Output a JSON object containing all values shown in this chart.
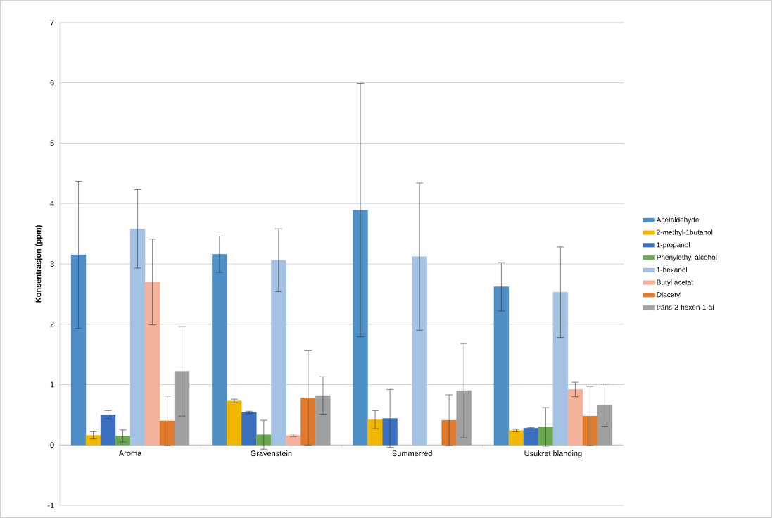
{
  "chart_data": {
    "type": "bar",
    "ylabel": "Konsentrasjon (ppm)",
    "categories": [
      "Aroma",
      "Gravenstein",
      "Summerred",
      "Usukret blanding"
    ],
    "series": [
      {
        "name": "Acetaldehyde",
        "color": "#4f8fc8",
        "values": [
          3.15,
          3.16,
          3.89,
          2.62
        ],
        "errors": [
          1.22,
          0.3,
          2.1,
          0.4
        ]
      },
      {
        "name": "2-methyl-1butanol",
        "color": "#f2b800",
        "values": [
          0.16,
          0.73,
          0.42,
          0.24
        ],
        "errors": [
          0.06,
          0.03,
          0.15,
          0.02
        ]
      },
      {
        "name": "1-propanol",
        "color": "#3a6fbf",
        "values": [
          0.5,
          0.54,
          0.44,
          0.28
        ],
        "errors": [
          0.07,
          0.02,
          0.48,
          0.01
        ]
      },
      {
        "name": "Phenylethyl alcohol",
        "color": "#6aa84f",
        "values": [
          0.15,
          0.17,
          null,
          0.3
        ],
        "errors": [
          0.1,
          0.24,
          null,
          0.32
        ]
      },
      {
        "name": "1-hexanol",
        "color": "#a4c2e4",
        "values": [
          3.58,
          3.06,
          3.12,
          2.53
        ],
        "errors": [
          0.65,
          0.52,
          1.22,
          0.75
        ]
      },
      {
        "name": "Butyl acetat",
        "color": "#f4b39a",
        "values": [
          2.7,
          0.16,
          null,
          0.92
        ],
        "errors": [
          0.71,
          0.02,
          null,
          0.12
        ]
      },
      {
        "name": "Diacetyl",
        "color": "#e07a2a",
        "values": [
          0.4,
          0.78,
          0.41,
          0.48
        ],
        "errors": [
          0.41,
          0.78,
          0.42,
          0.49
        ]
      },
      {
        "name": "trans-2-hexen-1-al",
        "color": "#a0a0a0",
        "values": [
          1.22,
          0.82,
          0.9,
          0.66
        ],
        "errors": [
          0.74,
          0.31,
          0.78,
          0.35
        ]
      }
    ],
    "ylim": [
      -1,
      7
    ],
    "yticks": [
      -1,
      0,
      1,
      2,
      3,
      4,
      5,
      6,
      7
    ],
    "grid": "y",
    "legend": "right"
  }
}
